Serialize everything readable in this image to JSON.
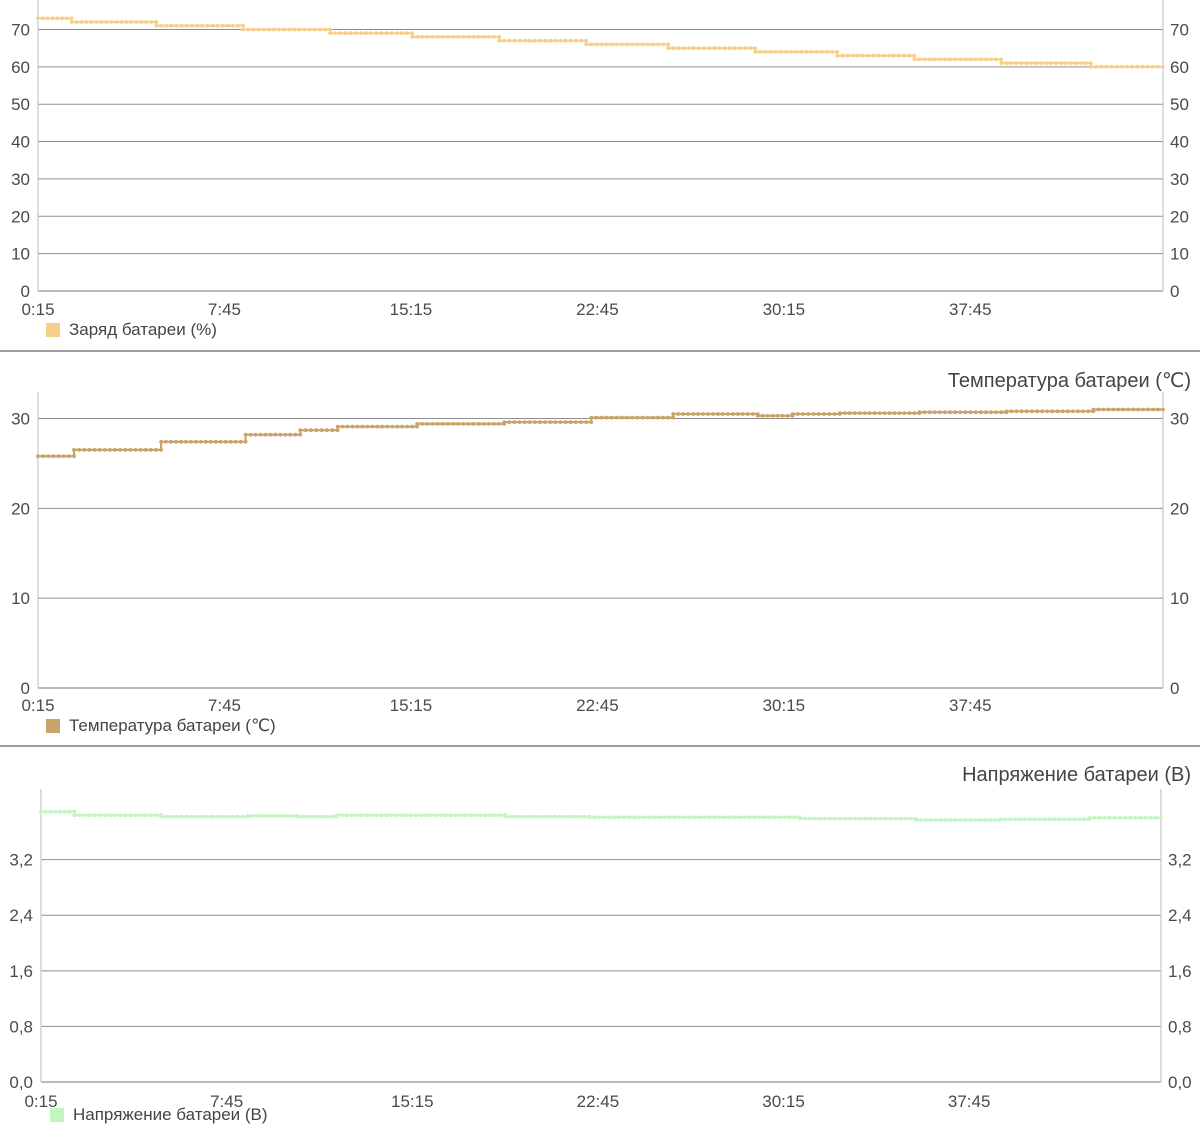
{
  "chart_data": [
    {
      "type": "line",
      "title": "",
      "xlabel": "",
      "ylabel": "",
      "categories": [
        "0:15",
        "7:45",
        "15:15",
        "22:45",
        "30:15",
        "37:45"
      ],
      "x_range": [
        0.25,
        45.5
      ],
      "ylim": [
        0,
        72
      ],
      "yticks": [
        "0",
        "10",
        "20",
        "30",
        "40",
        "50",
        "60",
        "70"
      ],
      "ytick_values": [
        0,
        10,
        20,
        30,
        40,
        50,
        60,
        70
      ],
      "grid": true,
      "legend": "bottom-left",
      "color": "#f8cf8a",
      "series": [
        {
          "name": "Заряд батареи (%)",
          "steps": [
            {
              "x": [
                0.25,
                1.6
              ],
              "y": 73
            },
            {
              "x": [
                1.6,
                5.0
              ],
              "y": 72
            },
            {
              "x": [
                5.0,
                8.5
              ],
              "y": 71
            },
            {
              "x": [
                8.5,
                12.0
              ],
              "y": 70
            },
            {
              "x": [
                12.0,
                15.3
              ],
              "y": 69
            },
            {
              "x": [
                15.3,
                18.8
              ],
              "y": 68
            },
            {
              "x": [
                18.8,
                22.3
              ],
              "y": 67
            },
            {
              "x": [
                22.3,
                25.6
              ],
              "y": 66
            },
            {
              "x": [
                25.6,
                29.1
              ],
              "y": 65
            },
            {
              "x": [
                29.1,
                32.4
              ],
              "y": 64
            },
            {
              "x": [
                32.4,
                35.5
              ],
              "y": 63
            },
            {
              "x": [
                35.5,
                39.0
              ],
              "y": 62
            },
            {
              "x": [
                39.0,
                42.6
              ],
              "y": 61
            },
            {
              "x": [
                42.6,
                45.5
              ],
              "y": 60
            }
          ]
        }
      ]
    },
    {
      "type": "line",
      "title": "Температура батареи (℃)",
      "xlabel": "",
      "ylabel": "",
      "categories": [
        "0:15",
        "7:45",
        "15:15",
        "22:45",
        "30:15",
        "37:45"
      ],
      "x_range": [
        0.25,
        45.5
      ],
      "ylim": [
        0,
        30.5
      ],
      "yticks": [
        "0",
        "10",
        "20",
        "30"
      ],
      "ytick_values": [
        0,
        10,
        20,
        30
      ],
      "grid": true,
      "legend": "bottom-left",
      "color": "#c9a36a",
      "series": [
        {
          "name": "Температура батареи (℃)",
          "steps": [
            {
              "x": [
                0.25,
                1.7
              ],
              "y": 25.8
            },
            {
              "x": [
                1.7,
                5.2
              ],
              "y": 26.5
            },
            {
              "x": [
                5.2,
                8.6
              ],
              "y": 27.4
            },
            {
              "x": [
                8.6,
                10.8
              ],
              "y": 28.2
            },
            {
              "x": [
                10.8,
                12.3
              ],
              "y": 28.7
            },
            {
              "x": [
                12.3,
                15.5
              ],
              "y": 29.1
            },
            {
              "x": [
                15.5,
                19.0
              ],
              "y": 29.4
            },
            {
              "x": [
                19.0,
                22.5
              ],
              "y": 29.6
            },
            {
              "x": [
                22.5,
                25.8
              ],
              "y": 30.1
            },
            {
              "x": [
                25.8,
                29.2
              ],
              "y": 30.5
            },
            {
              "x": [
                29.2,
                30.6
              ],
              "y": 30.3
            },
            {
              "x": [
                30.6,
                32.5
              ],
              "y": 30.5
            },
            {
              "x": [
                32.5,
                35.7
              ],
              "y": 30.6
            },
            {
              "x": [
                35.7,
                39.2
              ],
              "y": 30.7
            },
            {
              "x": [
                39.2,
                42.7
              ],
              "y": 30.8
            },
            {
              "x": [
                42.7,
                45.5
              ],
              "y": 31.0
            }
          ]
        }
      ]
    },
    {
      "type": "line",
      "title": "Напряжение батареи (В)",
      "xlabel": "",
      "ylabel": "",
      "categories": [
        "0:15",
        "7:45",
        "15:15",
        "22:45",
        "30:15",
        "37:45"
      ],
      "x_range": [
        0.25,
        45.5
      ],
      "ylim": [
        0,
        3.9
      ],
      "yticks": [
        "0,0",
        "0,8",
        "1,6",
        "2,4",
        "3,2"
      ],
      "ytick_values": [
        0,
        0.8,
        1.6,
        2.4,
        3.2
      ],
      "grid": true,
      "legend": "bottom-left",
      "color": "#c2f5c0",
      "series": [
        {
          "name": "Напряжение батареи (В)",
          "steps": [
            {
              "x": [
                0.25,
                1.6
              ],
              "y": 3.89
            },
            {
              "x": [
                1.6,
                5.1
              ],
              "y": 3.84
            },
            {
              "x": [
                5.1,
                8.6
              ],
              "y": 3.82
            },
            {
              "x": [
                8.6,
                10.6
              ],
              "y": 3.83
            },
            {
              "x": [
                10.6,
                12.2
              ],
              "y": 3.82
            },
            {
              "x": [
                12.2,
                19.0
              ],
              "y": 3.84
            },
            {
              "x": [
                19.0,
                22.4
              ],
              "y": 3.82
            },
            {
              "x": [
                22.4,
                30.9
              ],
              "y": 3.81
            },
            {
              "x": [
                30.9,
                35.6
              ],
              "y": 3.79
            },
            {
              "x": [
                35.6,
                39.0
              ],
              "y": 3.77
            },
            {
              "x": [
                39.0,
                42.6
              ],
              "y": 3.78
            },
            {
              "x": [
                42.6,
                45.5
              ],
              "y": 3.8
            }
          ]
        }
      ]
    }
  ]
}
